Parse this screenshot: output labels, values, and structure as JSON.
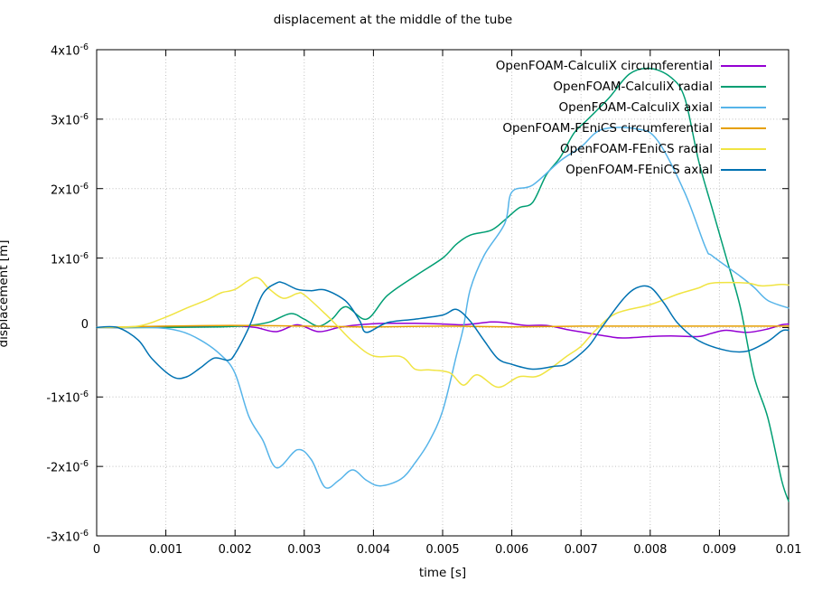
{
  "chart_data": {
    "type": "line",
    "title": "displacement at the middle of the tube",
    "xlabel": "time [s]",
    "ylabel": "displacement [m]",
    "xlim": [
      0,
      0.01
    ],
    "ylim": [
      -3e-06,
      4e-06
    ],
    "grid": true,
    "legend_position": "top-right-inside",
    "values_unit": "displacement values given in 1e-6 m",
    "x_ticks": [
      {
        "value": 0,
        "label": "0"
      },
      {
        "value": 0.001,
        "label": "0.001"
      },
      {
        "value": 0.002,
        "label": "0.002"
      },
      {
        "value": 0.003,
        "label": "0.003"
      },
      {
        "value": 0.004,
        "label": "0.004"
      },
      {
        "value": 0.005,
        "label": "0.005"
      },
      {
        "value": 0.006,
        "label": "0.006"
      },
      {
        "value": 0.007,
        "label": "0.007"
      },
      {
        "value": 0.008,
        "label": "0.008"
      },
      {
        "value": 0.009,
        "label": "0.009"
      },
      {
        "value": 0.01,
        "label": "0.01"
      }
    ],
    "y_ticks": [
      {
        "value_e6": 4,
        "label": "4x10^-6"
      },
      {
        "value_e6": 3,
        "label": "3x10^-6"
      },
      {
        "value_e6": 2,
        "label": "2x10^-6"
      },
      {
        "value_e6": 1,
        "label": "1x10^-6"
      },
      {
        "value_e6": 0,
        "label": "0"
      },
      {
        "value_e6": -1,
        "label": "-1x10^-6"
      },
      {
        "value_e6": -2,
        "label": "-2x10^-6"
      },
      {
        "value_e6": -3,
        "label": "-3x10^-6"
      }
    ],
    "series": [
      {
        "name": "OpenFOAM-CalculiX circumferential",
        "color": "#9400d3",
        "points_e6": [
          [
            0,
            0
          ],
          [
            0.0005,
            0
          ],
          [
            0.001,
            0.01
          ],
          [
            0.0015,
            0.01
          ],
          [
            0.002,
            0.02
          ],
          [
            0.0023,
            0
          ],
          [
            0.0026,
            -0.06
          ],
          [
            0.0029,
            0.04
          ],
          [
            0.0032,
            -0.06
          ],
          [
            0.0035,
            0
          ],
          [
            0.0038,
            0.04
          ],
          [
            0.0042,
            0.06
          ],
          [
            0.0046,
            0.06
          ],
          [
            0.005,
            0.05
          ],
          [
            0.0053,
            0.04
          ],
          [
            0.0057,
            0.08
          ],
          [
            0.0059,
            0.07
          ],
          [
            0.0062,
            0.03
          ],
          [
            0.0065,
            0.03
          ],
          [
            0.0068,
            -0.03
          ],
          [
            0.0071,
            -0.08
          ],
          [
            0.0074,
            -0.13
          ],
          [
            0.0076,
            -0.15
          ],
          [
            0.008,
            -0.13
          ],
          [
            0.0083,
            -0.12
          ],
          [
            0.0087,
            -0.13
          ],
          [
            0.0089,
            -0.08
          ],
          [
            0.0091,
            -0.04
          ],
          [
            0.0094,
            -0.07
          ],
          [
            0.0097,
            -0.02
          ],
          [
            0.0099,
            0.04
          ],
          [
            0.01,
            0.05
          ]
        ]
      },
      {
        "name": "OpenFOAM-CalculiX radial",
        "color": "#009e73",
        "points_e6": [
          [
            0,
            0
          ],
          [
            0.001,
            0
          ],
          [
            0.0018,
            0.01
          ],
          [
            0.0022,
            0.03
          ],
          [
            0.0025,
            0.08
          ],
          [
            0.0028,
            0.2
          ],
          [
            0.003,
            0.12
          ],
          [
            0.0032,
            0.02
          ],
          [
            0.0034,
            0.12
          ],
          [
            0.0036,
            0.3
          ],
          [
            0.0039,
            0.12
          ],
          [
            0.0042,
            0.46
          ],
          [
            0.0046,
            0.74
          ],
          [
            0.005,
            1.0
          ],
          [
            0.0052,
            1.2
          ],
          [
            0.0054,
            1.33
          ],
          [
            0.0057,
            1.4
          ],
          [
            0.0059,
            1.55
          ],
          [
            0.0061,
            1.72
          ],
          [
            0.0063,
            1.8
          ],
          [
            0.0065,
            2.2
          ],
          [
            0.0067,
            2.45
          ],
          [
            0.0069,
            2.8
          ],
          [
            0.0071,
            3.0
          ],
          [
            0.0074,
            3.3
          ],
          [
            0.0077,
            3.65
          ],
          [
            0.008,
            3.73
          ],
          [
            0.0083,
            3.6
          ],
          [
            0.0085,
            3.3
          ],
          [
            0.0087,
            2.4
          ],
          [
            0.0089,
            1.7
          ],
          [
            0.0091,
            1.0
          ],
          [
            0.0093,
            0.3
          ],
          [
            0.0095,
            -0.7
          ],
          [
            0.0097,
            -1.3
          ],
          [
            0.0099,
            -2.2
          ],
          [
            0.01,
            -2.5
          ]
        ]
      },
      {
        "name": "OpenFOAM-CalculiX axial",
        "color": "#56b4e9",
        "points_e6": [
          [
            0,
            0
          ],
          [
            0.0008,
            0
          ],
          [
            0.0012,
            -0.05
          ],
          [
            0.0015,
            -0.18
          ],
          [
            0.0018,
            -0.4
          ],
          [
            0.002,
            -0.66
          ],
          [
            0.0022,
            -1.28
          ],
          [
            0.0024,
            -1.62
          ],
          [
            0.0026,
            -2.02
          ],
          [
            0.0029,
            -1.76
          ],
          [
            0.0031,
            -1.9
          ],
          [
            0.0033,
            -2.3
          ],
          [
            0.0035,
            -2.2
          ],
          [
            0.0037,
            -2.05
          ],
          [
            0.0039,
            -2.2
          ],
          [
            0.0041,
            -2.28
          ],
          [
            0.0044,
            -2.18
          ],
          [
            0.0046,
            -1.95
          ],
          [
            0.0048,
            -1.65
          ],
          [
            0.005,
            -1.2
          ],
          [
            0.0052,
            -0.4
          ],
          [
            0.0053,
            0
          ],
          [
            0.0054,
            0.55
          ],
          [
            0.0056,
            1.04
          ],
          [
            0.0059,
            1.5
          ],
          [
            0.006,
            1.95
          ],
          [
            0.0063,
            2.05
          ],
          [
            0.0067,
            2.4
          ],
          [
            0.007,
            2.6
          ],
          [
            0.0073,
            2.85
          ],
          [
            0.0078,
            2.86
          ],
          [
            0.0081,
            2.7
          ],
          [
            0.0085,
            1.94
          ],
          [
            0.0088,
            1.15
          ],
          [
            0.0089,
            1.03
          ],
          [
            0.0093,
            0.74
          ],
          [
            0.0095,
            0.58
          ],
          [
            0.0097,
            0.39
          ],
          [
            0.01,
            0.28
          ]
        ]
      },
      {
        "name": "OpenFOAM-FEniCS circumferential",
        "color": "#e69f00",
        "points_e6": [
          [
            0,
            0
          ],
          [
            0.001,
            0.02
          ],
          [
            0.002,
            0.03
          ],
          [
            0.003,
            0.02
          ],
          [
            0.004,
            0.01
          ],
          [
            0.005,
            0.02
          ],
          [
            0.006,
            0.01
          ],
          [
            0.007,
            0.02
          ],
          [
            0.008,
            0.02
          ],
          [
            0.009,
            0.02
          ],
          [
            0.01,
            0.02
          ]
        ]
      },
      {
        "name": "OpenFOAM-FEniCS radial",
        "color": "#f0e442",
        "points_e6": [
          [
            0,
            0
          ],
          [
            0.0006,
            0.02
          ],
          [
            0.001,
            0.15
          ],
          [
            0.0013,
            0.28
          ],
          [
            0.0016,
            0.4
          ],
          [
            0.0018,
            0.5
          ],
          [
            0.002,
            0.55
          ],
          [
            0.0023,
            0.72
          ],
          [
            0.0025,
            0.55
          ],
          [
            0.0027,
            0.42
          ],
          [
            0.0029,
            0.49
          ],
          [
            0.003,
            0.47
          ],
          [
            0.0033,
            0.2
          ],
          [
            0.0035,
            0
          ],
          [
            0.0037,
            -0.2
          ],
          [
            0.004,
            -0.41
          ],
          [
            0.0044,
            -0.42
          ],
          [
            0.0046,
            -0.6
          ],
          [
            0.0048,
            -0.61
          ],
          [
            0.0051,
            -0.65
          ],
          [
            0.0053,
            -0.83
          ],
          [
            0.0055,
            -0.68
          ],
          [
            0.0058,
            -0.86
          ],
          [
            0.0061,
            -0.71
          ],
          [
            0.0064,
            -0.69
          ],
          [
            0.0068,
            -0.41
          ],
          [
            0.007,
            -0.27
          ],
          [
            0.0072,
            -0.05
          ],
          [
            0.0075,
            0.2
          ],
          [
            0.008,
            0.33
          ],
          [
            0.0084,
            0.48
          ],
          [
            0.0087,
            0.57
          ],
          [
            0.0089,
            0.64
          ],
          [
            0.0094,
            0.64
          ],
          [
            0.0096,
            0.6
          ],
          [
            0.0099,
            0.62
          ],
          [
            0.01,
            0.61
          ]
        ]
      },
      {
        "name": "OpenFOAM-FEniCS axial",
        "color": "#0072b2",
        "points_e6": [
          [
            0,
            0
          ],
          [
            0.0003,
            0
          ],
          [
            0.0006,
            -0.18
          ],
          [
            0.0008,
            -0.45
          ],
          [
            0.0011,
            -0.71
          ],
          [
            0.0013,
            -0.71
          ],
          [
            0.0015,
            -0.58
          ],
          [
            0.0017,
            -0.44
          ],
          [
            0.0019,
            -0.47
          ],
          [
            0.002,
            -0.38
          ],
          [
            0.0022,
            0
          ],
          [
            0.0024,
            0.48
          ],
          [
            0.0026,
            0.64
          ],
          [
            0.0027,
            0.64
          ],
          [
            0.0029,
            0.55
          ],
          [
            0.0031,
            0.53
          ],
          [
            0.0033,
            0.54
          ],
          [
            0.0036,
            0.38
          ],
          [
            0.0038,
            0.1
          ],
          [
            0.0039,
            -0.07
          ],
          [
            0.0042,
            0.07
          ],
          [
            0.0046,
            0.12
          ],
          [
            0.005,
            0.18
          ],
          [
            0.0052,
            0.26
          ],
          [
            0.0054,
            0.09
          ],
          [
            0.0056,
            -0.19
          ],
          [
            0.0058,
            -0.45
          ],
          [
            0.006,
            -0.53
          ],
          [
            0.0063,
            -0.6
          ],
          [
            0.0066,
            -0.56
          ],
          [
            0.0068,
            -0.52
          ],
          [
            0.0071,
            -0.28
          ],
          [
            0.0073,
            0
          ],
          [
            0.0076,
            0.4
          ],
          [
            0.0078,
            0.57
          ],
          [
            0.008,
            0.58
          ],
          [
            0.0082,
            0.35
          ],
          [
            0.0084,
            0.06
          ],
          [
            0.0087,
            -0.19
          ],
          [
            0.0091,
            -0.33
          ],
          [
            0.0094,
            -0.34
          ],
          [
            0.0097,
            -0.2
          ],
          [
            0.0099,
            -0.05
          ],
          [
            0.01,
            -0.04
          ]
        ]
      }
    ],
    "style": {
      "grid_color": "#c0c0c0",
      "axis_color": "#000000",
      "background": "#ffffff",
      "line_width": 1.5
    }
  }
}
